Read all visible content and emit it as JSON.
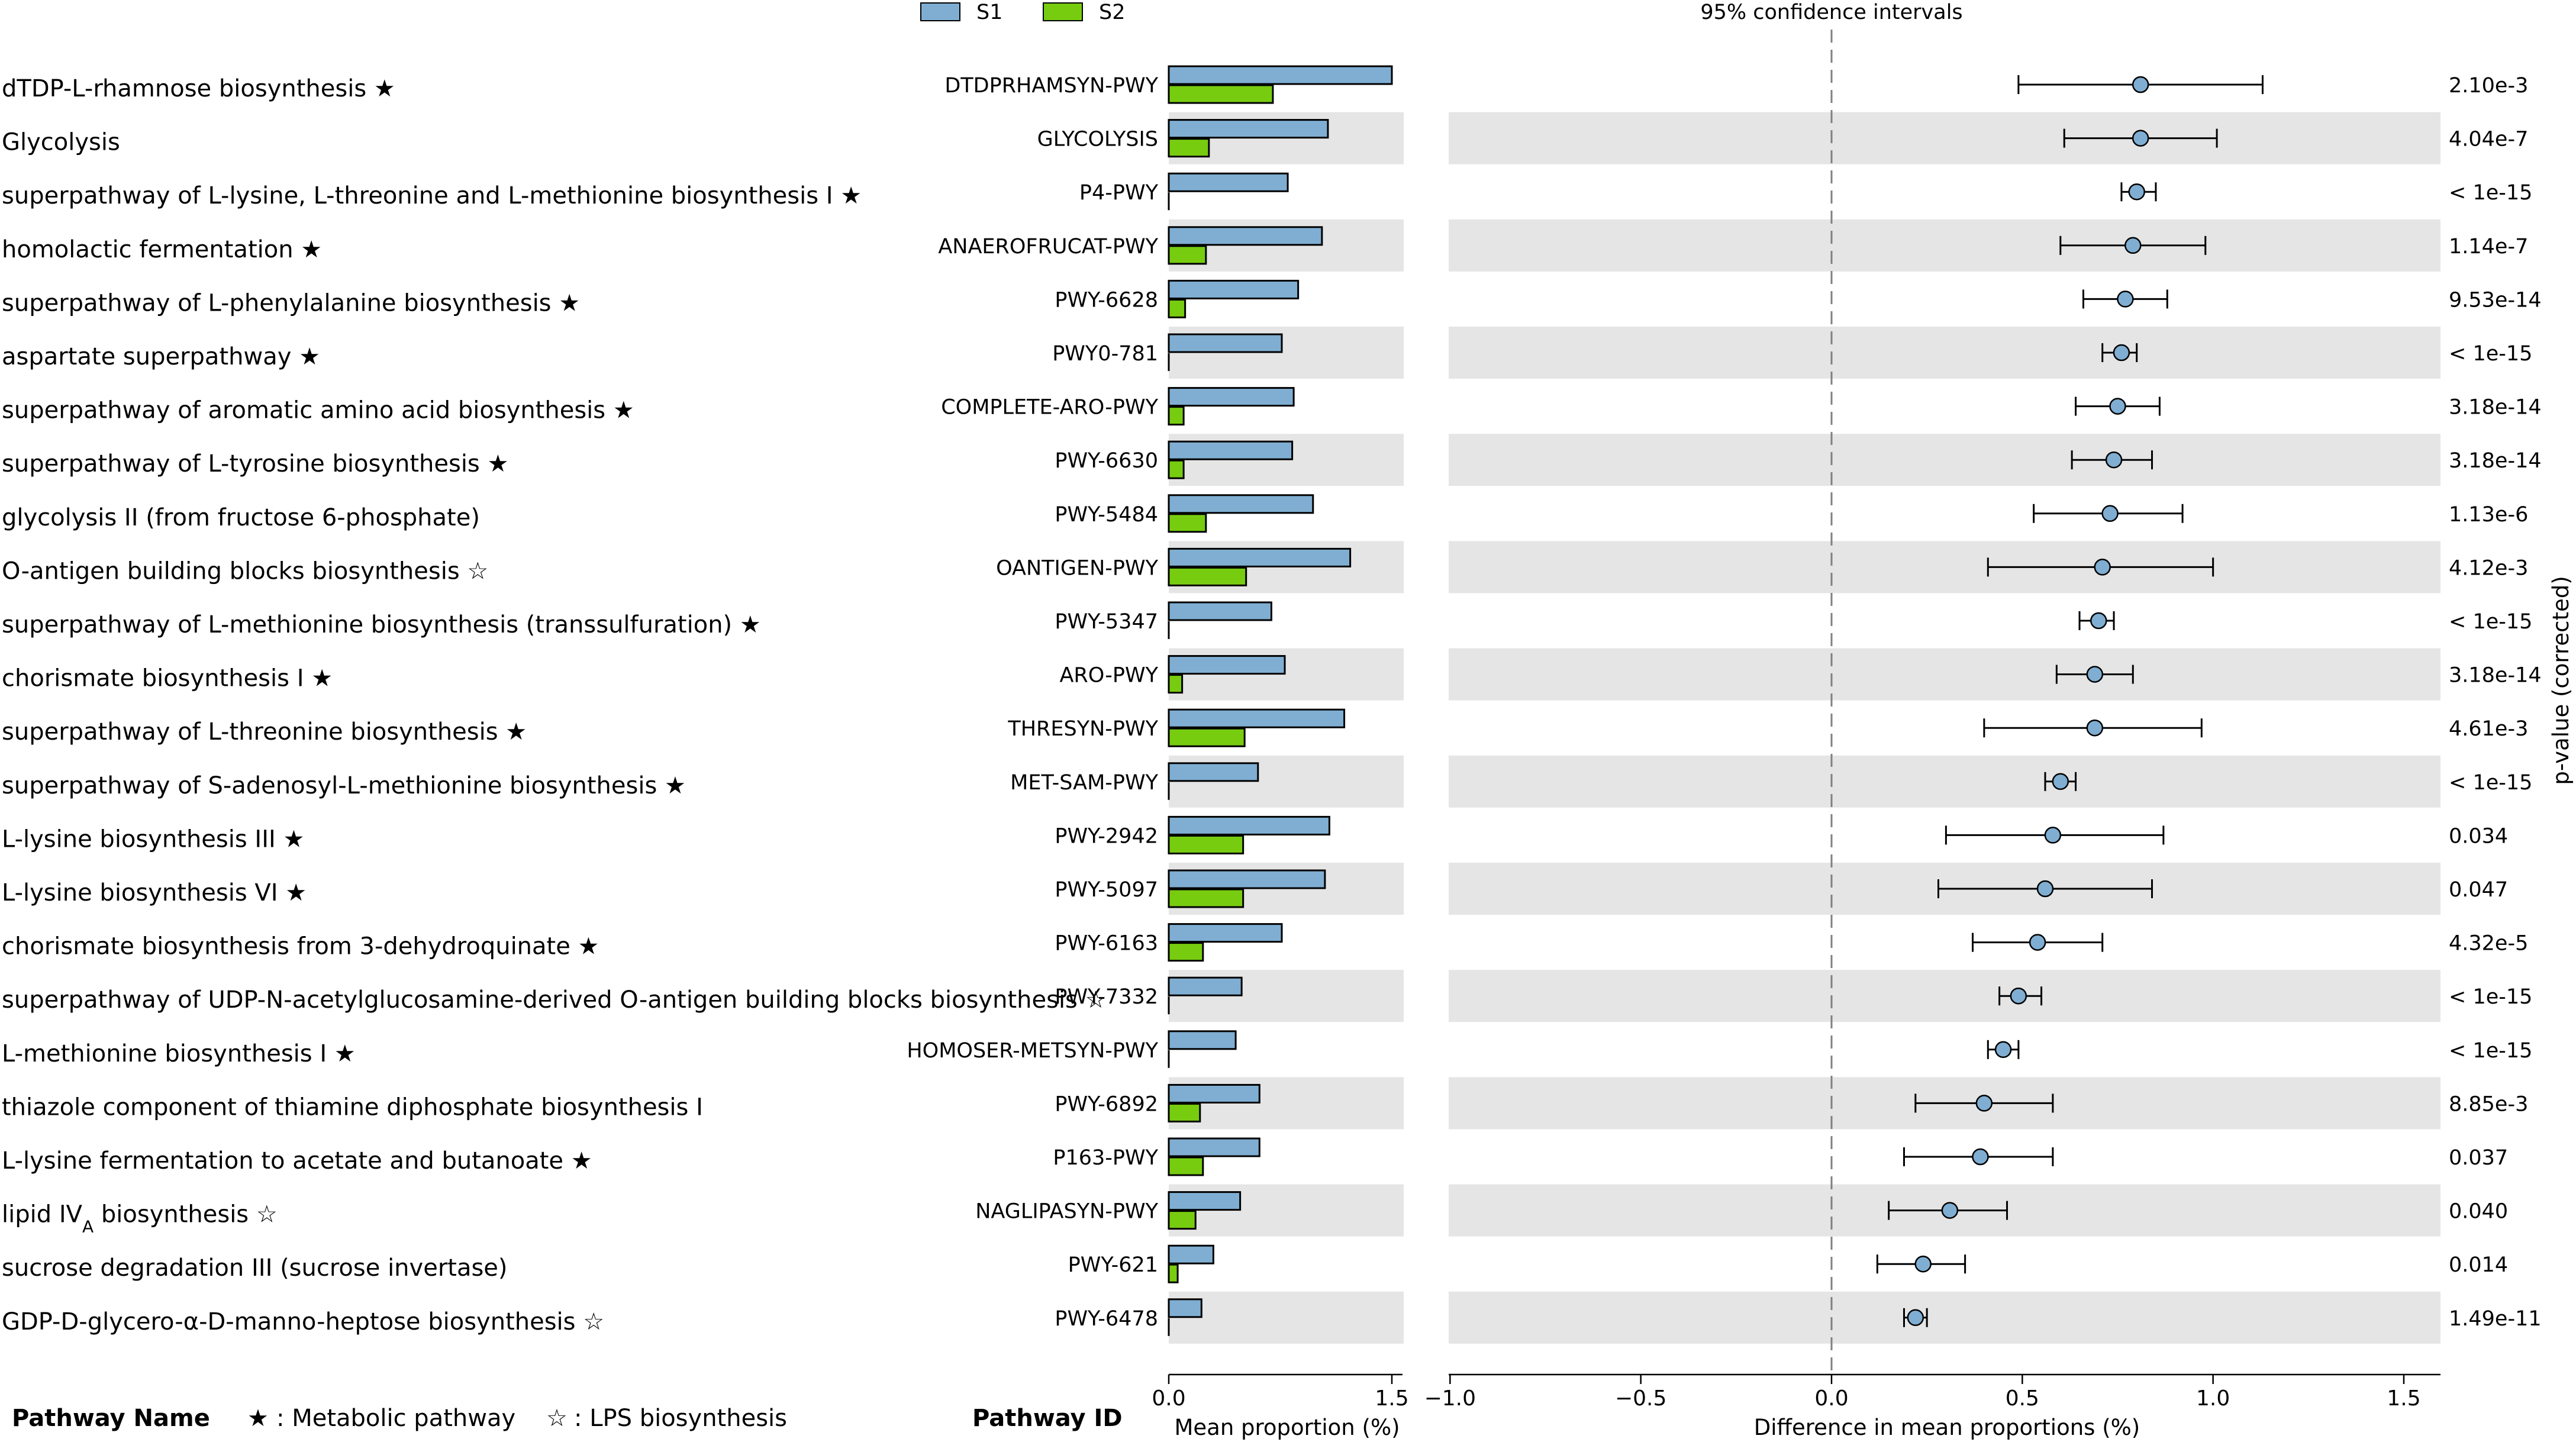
{
  "chart_data": {
    "type": "bar",
    "series": [
      {
        "name": "S1",
        "color": "#7faed2"
      },
      {
        "name": "S2",
        "color": "#77cc10"
      }
    ],
    "rows": [
      {
        "name": "dTDP-L-rhamnose biosynthesis",
        "mark": "★",
        "id": "DTDPRHAMSYN-PWY",
        "s1": 1.5,
        "s2": 0.7,
        "diff": 0.81,
        "ci": [
          0.49,
          1.13
        ],
        "pval": "2.10e-3"
      },
      {
        "name": "Glycolysis",
        "mark": "",
        "id": "GLYCOLYSIS",
        "s1": 1.07,
        "s2": 0.27,
        "diff": 0.81,
        "ci": [
          0.61,
          1.01
        ],
        "pval": "4.04e-7"
      },
      {
        "name": "superpathway of L-lysine, L-threonine and L-methionine biosynthesis I",
        "mark": "★",
        "id": "P4-PWY",
        "s1": 0.8,
        "s2": 0.0,
        "diff": 0.8,
        "ci": [
          0.76,
          0.85
        ],
        "pval": "< 1e-15"
      },
      {
        "name": "homolactic fermentation",
        "mark": "★",
        "id": "ANAEROFRUCAT-PWY",
        "s1": 1.03,
        "s2": 0.25,
        "diff": 0.79,
        "ci": [
          0.6,
          0.98
        ],
        "pval": "1.14e-7"
      },
      {
        "name": "superpathway of L-phenylalanine biosynthesis",
        "mark": "★",
        "id": "PWY-6628",
        "s1": 0.87,
        "s2": 0.11,
        "diff": 0.77,
        "ci": [
          0.66,
          0.88
        ],
        "pval": "9.53e-14"
      },
      {
        "name": "aspartate superpathway",
        "mark": "★",
        "id": "PWY0-781",
        "s1": 0.76,
        "s2": 0.0,
        "diff": 0.76,
        "ci": [
          0.71,
          0.8
        ],
        "pval": "< 1e-15"
      },
      {
        "name": "superpathway of aromatic amino acid biosynthesis",
        "mark": "★",
        "id": "COMPLETE-ARO-PWY",
        "s1": 0.84,
        "s2": 0.1,
        "diff": 0.75,
        "ci": [
          0.64,
          0.86
        ],
        "pval": "3.18e-14"
      },
      {
        "name": "superpathway of L-tyrosine biosynthesis",
        "mark": "★",
        "id": "PWY-6630",
        "s1": 0.83,
        "s2": 0.1,
        "diff": 0.74,
        "ci": [
          0.63,
          0.84
        ],
        "pval": "3.18e-14"
      },
      {
        "name": "glycolysis II (from fructose 6-phosphate)",
        "mark": "",
        "id": "PWY-5484",
        "s1": 0.97,
        "s2": 0.25,
        "diff": 0.73,
        "ci": [
          0.53,
          0.92
        ],
        "pval": "1.13e-6"
      },
      {
        "name": "O-antigen building blocks biosynthesis",
        "mark": "☆",
        "id": "OANTIGEN-PWY",
        "s1": 1.22,
        "s2": 0.52,
        "diff": 0.71,
        "ci": [
          0.41,
          1.0
        ],
        "pval": "4.12e-3"
      },
      {
        "name": "superpathway of L-methionine biosynthesis (transsulfuration)",
        "mark": "★",
        "id": "PWY-5347",
        "s1": 0.69,
        "s2": 0.0,
        "diff": 0.7,
        "ci": [
          0.65,
          0.74
        ],
        "pval": "< 1e-15"
      },
      {
        "name": "chorismate biosynthesis I",
        "mark": "★",
        "id": "ARO-PWY",
        "s1": 0.78,
        "s2": 0.09,
        "diff": 0.69,
        "ci": [
          0.59,
          0.79
        ],
        "pval": "3.18e-14"
      },
      {
        "name": "superpathway of L-threonine biosynthesis",
        "mark": "★",
        "id": "THRESYN-PWY",
        "s1": 1.18,
        "s2": 0.51,
        "diff": 0.69,
        "ci": [
          0.4,
          0.97
        ],
        "pval": "4.61e-3"
      },
      {
        "name": "superpathway of S-adenosyl-L-methionine biosynthesis",
        "mark": "★",
        "id": "MET-SAM-PWY",
        "s1": 0.6,
        "s2": 0.0,
        "diff": 0.6,
        "ci": [
          0.56,
          0.64
        ],
        "pval": "< 1e-15"
      },
      {
        "name": "L-lysine biosynthesis III",
        "mark": "★",
        "id": "PWY-2942",
        "s1": 1.08,
        "s2": 0.5,
        "diff": 0.58,
        "ci": [
          0.3,
          0.87
        ],
        "pval": "0.034"
      },
      {
        "name": "L-lysine biosynthesis VI",
        "mark": "★",
        "id": "PWY-5097",
        "s1": 1.05,
        "s2": 0.5,
        "diff": 0.56,
        "ci": [
          0.28,
          0.84
        ],
        "pval": "0.047"
      },
      {
        "name": "chorismate biosynthesis from 3-dehydroquinate",
        "mark": "★",
        "id": "PWY-6163",
        "s1": 0.76,
        "s2": 0.23,
        "diff": 0.54,
        "ci": [
          0.37,
          0.71
        ],
        "pval": "4.32e-5"
      },
      {
        "name": "superpathway of UDP-N-acetylglucosamine-derived O-antigen building blocks biosynthesis",
        "mark": "☆",
        "id": "PWY-7332",
        "s1": 0.49,
        "s2": 0.0,
        "diff": 0.49,
        "ci": [
          0.44,
          0.55
        ],
        "pval": "< 1e-15"
      },
      {
        "name": "L-methionine biosynthesis I",
        "mark": "★",
        "id": "HOMOSER-METSYN-PWY",
        "s1": 0.45,
        "s2": 0.0,
        "diff": 0.45,
        "ci": [
          0.41,
          0.49
        ],
        "pval": "< 1e-15"
      },
      {
        "name": "thiazole component of thiamine diphosphate biosynthesis I",
        "mark": "",
        "id": "PWY-6892",
        "s1": 0.61,
        "s2": 0.21,
        "diff": 0.4,
        "ci": [
          0.22,
          0.58
        ],
        "pval": "8.85e-3"
      },
      {
        "name": "L-lysine fermentation to acetate and butanoate",
        "mark": "★",
        "id": "P163-PWY",
        "s1": 0.61,
        "s2": 0.23,
        "diff": 0.39,
        "ci": [
          0.19,
          0.58
        ],
        "pval": "0.037"
      },
      {
        "name": "lipid IV",
        "name_sub": "A",
        "name_after": " biosynthesis",
        "mark": "☆",
        "id": "NAGLIPASYN-PWY",
        "s1": 0.48,
        "s2": 0.18,
        "diff": 0.31,
        "ci": [
          0.15,
          0.46
        ],
        "pval": "0.040"
      },
      {
        "name": "sucrose degradation III (sucrose invertase)",
        "mark": "",
        "id": "PWY-621",
        "s1": 0.3,
        "s2": 0.06,
        "diff": 0.24,
        "ci": [
          0.12,
          0.35
        ],
        "pval": "0.014"
      },
      {
        "name": "GDP-D-glycero-α-D-manno-heptose biosynthesis",
        "mark": "☆",
        "id": "PWY-6478",
        "s1": 0.22,
        "s2": 0.0,
        "diff": 0.22,
        "ci": [
          0.19,
          0.25
        ],
        "pval": "1.49e-11"
      }
    ],
    "bar_axis": {
      "xlabel": "Mean proportion (%)",
      "xlim": [
        0.0,
        1.5
      ],
      "ticks": [
        "0.0",
        "1.5"
      ]
    },
    "diff_axis": {
      "xlabel": "Difference in mean proportions (%)",
      "xlim": [
        -1.0,
        1.6
      ],
      "ticks": [
        "−1.0",
        "−0.5",
        "0.0",
        "0.5",
        "1.0",
        "1.5"
      ],
      "tick_values": [
        -1.0,
        -0.5,
        0.0,
        0.5,
        1.0,
        1.5
      ],
      "title": "95% confidence intervals"
    },
    "pvalue_label": "p-value (corrected)"
  },
  "footer": {
    "pathway_name": "Pathway Name",
    "metabolic_mark": "★",
    "metabolic_text": ": Metabolic pathway",
    "lps_mark": "☆",
    "lps_text": ": LPS biosynthesis",
    "pathway_id": "Pathway ID"
  },
  "colors": {
    "s1": "#7faed2",
    "s2": "#77cc10",
    "band": "#e5e5e5",
    "marker": "#7faed2"
  }
}
